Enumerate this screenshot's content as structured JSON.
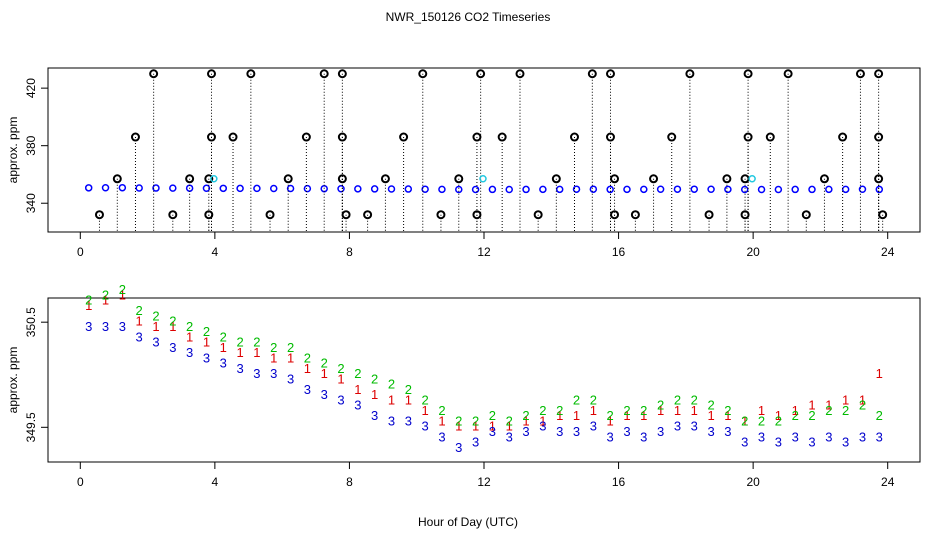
{
  "chart_data": [
    {
      "type": "scatter",
      "title": "NWR_150126  CO2 Timeseries",
      "ylabel": "approx. ppm",
      "xlim": [
        -0.96,
        24.96
      ],
      "ylim": [
        320,
        434
      ],
      "xticks": [
        0,
        4,
        8,
        12,
        16,
        20,
        24
      ],
      "yticks": [
        340,
        380,
        420
      ],
      "series": [
        {
          "color": "#0000ff",
          "marker": "circle",
          "x": [
            0.25,
            0.75,
            1.25,
            1.75,
            2.25,
            2.75,
            3.25,
            3.75,
            4.25,
            4.75,
            5.25,
            5.75,
            6.25,
            6.75,
            7.25,
            7.75,
            8.25,
            8.75,
            9.25,
            9.75,
            10.25,
            10.75,
            11.25,
            11.75,
            12.25,
            12.75,
            13.25,
            13.75,
            14.25,
            14.75,
            15.25,
            15.75,
            16.25,
            16.75,
            17.25,
            17.75,
            18.25,
            18.75,
            19.25,
            19.75,
            20.25,
            20.75,
            21.25,
            21.75,
            22.25,
            22.75,
            23.25,
            23.75
          ],
          "values": [
            350.7,
            350.75,
            350.8,
            350.6,
            350.55,
            350.5,
            350.45,
            350.4,
            350.35,
            350.3,
            350.3,
            350.25,
            350.25,
            350.15,
            350.1,
            350.05,
            350.0,
            349.95,
            349.9,
            349.85,
            349.75,
            349.65,
            349.55,
            349.55,
            349.6,
            349.55,
            349.6,
            349.65,
            349.65,
            349.75,
            349.75,
            349.6,
            349.65,
            349.65,
            349.7,
            349.75,
            349.75,
            349.7,
            349.65,
            349.55,
            349.55,
            349.55,
            349.6,
            349.6,
            349.65,
            349.65,
            349.7,
            349.6
          ]
        },
        {
          "color": "#000000",
          "marker": "circle",
          "stems": true,
          "x": [
            0.57,
            1.1,
            1.64,
            2.18,
            2.75,
            3.25,
            3.82,
            3.82,
            3.9,
            3.9,
            4.54,
            5.07,
            5.64,
            6.18,
            6.72,
            7.25,
            7.79,
            7.79,
            7.79,
            7.9,
            8.54,
            9.07,
            9.61,
            10.18,
            10.72,
            11.25,
            11.79,
            11.79,
            11.9,
            12.54,
            13.07,
            13.61,
            14.15,
            14.69,
            15.22,
            15.76,
            15.76,
            15.88,
            15.88,
            16.5,
            17.04,
            17.58,
            18.12,
            18.69,
            19.22,
            19.76,
            19.76,
            19.85,
            19.85,
            20.51,
            21.04,
            21.58,
            22.12,
            22.66,
            23.19,
            23.73,
            23.73,
            23.73,
            23.85
          ],
          "values": [
            332,
            357,
            386,
            430,
            332,
            357,
            332,
            357,
            386,
            430,
            386,
            430,
            332,
            357,
            386,
            430,
            430,
            386,
            357,
            332,
            332,
            357,
            386,
            430,
            332,
            357,
            332,
            386,
            430,
            386,
            430,
            332,
            357,
            386,
            430,
            430,
            386,
            357,
            332,
            332,
            357,
            386,
            430,
            332,
            357,
            332,
            357,
            386,
            430,
            386,
            430,
            332,
            357,
            386,
            430,
            430,
            357,
            386,
            332
          ]
        },
        {
          "color": "#22c8e0",
          "marker": "circle",
          "x": [
            3.97,
            11.97,
            19.97
          ],
          "values": [
            357,
            357,
            357
          ]
        }
      ]
    },
    {
      "type": "text-scatter",
      "xlabel": "Hour of Day (UTC)",
      "ylabel": "approx. ppm",
      "xlim": [
        -0.96,
        24.96
      ],
      "ylim": [
        349.17,
        350.73
      ],
      "xticks": [
        0,
        4,
        8,
        12,
        16,
        20,
        24
      ],
      "yticks": [
        349.5,
        350.5
      ],
      "x": [
        0.25,
        0.75,
        1.25,
        1.75,
        2.25,
        2.75,
        3.25,
        3.75,
        4.25,
        4.75,
        5.25,
        5.75,
        6.25,
        6.75,
        7.25,
        7.75,
        8.25,
        8.75,
        9.25,
        9.75,
        10.25,
        10.75,
        11.25,
        11.75,
        12.25,
        12.75,
        13.25,
        13.75,
        14.25,
        14.75,
        15.25,
        15.75,
        16.25,
        16.75,
        17.25,
        17.75,
        18.25,
        18.75,
        19.25,
        19.75,
        20.25,
        20.75,
        21.25,
        21.75,
        22.25,
        22.75,
        23.25,
        23.75
      ],
      "series": [
        {
          "marker": "1",
          "color": "#dd0000",
          "values": [
            350.65,
            350.7,
            350.75,
            350.5,
            350.45,
            350.45,
            350.35,
            350.3,
            350.25,
            350.2,
            350.2,
            350.15,
            350.15,
            350.05,
            350.0,
            349.95,
            349.85,
            349.8,
            349.75,
            349.75,
            349.65,
            349.55,
            349.5,
            349.5,
            349.5,
            349.5,
            349.55,
            349.55,
            349.6,
            349.6,
            349.65,
            349.55,
            349.6,
            349.6,
            349.65,
            349.65,
            349.65,
            349.6,
            349.6,
            349.55,
            349.65,
            349.6,
            349.65,
            349.7,
            349.7,
            349.75,
            349.75,
            350.0
          ]
        },
        {
          "marker": "2",
          "color": "#00bb00",
          "values": [
            350.7,
            350.75,
            350.8,
            350.6,
            350.55,
            350.5,
            350.45,
            350.4,
            350.35,
            350.3,
            350.3,
            350.25,
            350.25,
            350.15,
            350.1,
            350.05,
            350.0,
            349.95,
            349.9,
            349.85,
            349.75,
            349.65,
            349.55,
            349.55,
            349.6,
            349.55,
            349.6,
            349.65,
            349.65,
            349.75,
            349.75,
            349.6,
            349.65,
            349.65,
            349.7,
            349.75,
            349.75,
            349.7,
            349.65,
            349.55,
            349.55,
            349.55,
            349.6,
            349.6,
            349.65,
            349.65,
            349.7,
            349.6
          ]
        },
        {
          "marker": "3",
          "color": "#0000cc",
          "values": [
            350.45,
            350.45,
            350.45,
            350.35,
            350.3,
            350.25,
            350.2,
            350.15,
            350.1,
            350.05,
            350.0,
            350.0,
            349.95,
            349.85,
            349.8,
            349.75,
            349.7,
            349.6,
            349.55,
            349.55,
            349.5,
            349.4,
            349.3,
            349.35,
            349.45,
            349.4,
            349.45,
            349.5,
            349.45,
            349.45,
            349.5,
            349.4,
            349.45,
            349.4,
            349.45,
            349.5,
            349.5,
            349.45,
            349.45,
            349.35,
            349.4,
            349.35,
            349.4,
            349.35,
            349.4,
            349.35,
            349.4,
            349.4
          ]
        }
      ]
    }
  ]
}
